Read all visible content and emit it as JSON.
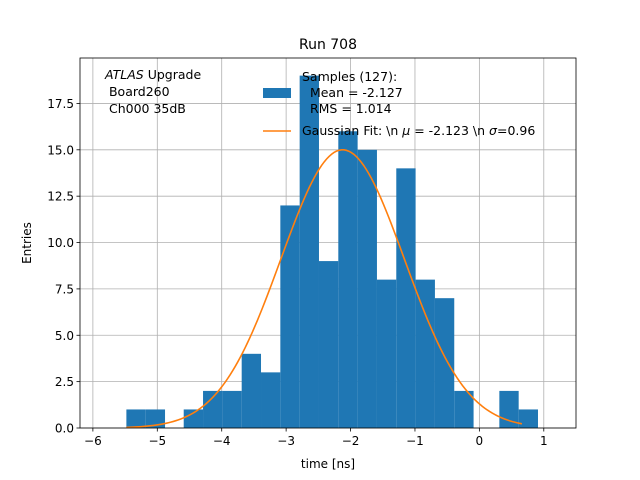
{
  "chart_data": {
    "type": "bar",
    "title": "Run 708",
    "xlabel": "time [ns]",
    "ylabel": "Entries",
    "xlim": [
      -6.2,
      1.5
    ],
    "ylim": [
      0,
      19.95
    ],
    "grid": true,
    "xticks": [
      {
        "value": -6,
        "label": "−6"
      },
      {
        "value": -5,
        "label": "−5"
      },
      {
        "value": -4,
        "label": "−4"
      },
      {
        "value": -3,
        "label": "−3"
      },
      {
        "value": -2,
        "label": "−2"
      },
      {
        "value": -1,
        "label": "−1"
      },
      {
        "value": 0,
        "label": "0"
      },
      {
        "value": 1,
        "label": "1"
      }
    ],
    "yticks": [
      {
        "value": 0,
        "label": "0.0"
      },
      {
        "value": 2.5,
        "label": "2.5"
      },
      {
        "value": 5,
        "label": "5.0"
      },
      {
        "value": 7.5,
        "label": "7.5"
      },
      {
        "value": 10,
        "label": "10.0"
      },
      {
        "value": 12.5,
        "label": "12.5"
      },
      {
        "value": 15,
        "label": "15.0"
      },
      {
        "value": 17.5,
        "label": "17.5"
      }
    ],
    "histogram": {
      "name": "Samples (127):",
      "color": "#1f77b4",
      "bin_edges": [
        -5.48,
        -5.18,
        -4.88,
        -4.59,
        -4.29,
        -3.99,
        -3.69,
        -3.39,
        -3.09,
        -2.79,
        -2.49,
        -2.19,
        -1.89,
        -1.59,
        -1.29,
        -0.99,
        -0.69,
        -0.39,
        -0.09,
        0.21,
        0.31,
        0.61,
        0.91
      ],
      "counts": [
        1,
        1,
        0,
        1,
        2,
        2,
        4,
        3,
        12,
        19,
        9,
        16,
        15,
        8,
        14,
        8,
        7,
        2,
        0,
        0,
        2,
        1
      ]
    },
    "fit": {
      "type": "gaussian",
      "color": "#ff7f0e",
      "amplitude": 15.0,
      "mu": -2.123,
      "sigma": 0.96,
      "x_range": [
        -5.48,
        0.66
      ]
    },
    "legend": {
      "location": "top-right",
      "samples_lines": [
        "Samples (127):",
        "  Mean = -2.127",
        "  RMS = 1.014"
      ],
      "fit_label_prefix": "Gaussian Fit: \\n ",
      "fit_mu_symbol": "μ",
      "fit_mu_text": " = -2.123 \\n ",
      "fit_sigma_symbol": "σ",
      "fit_sigma_text": "=0.96"
    },
    "annotation": {
      "experiment": "ATLAS",
      "experiment_suffix": " Upgrade",
      "board": " Board260",
      "channel": " Ch000 35dB"
    }
  }
}
